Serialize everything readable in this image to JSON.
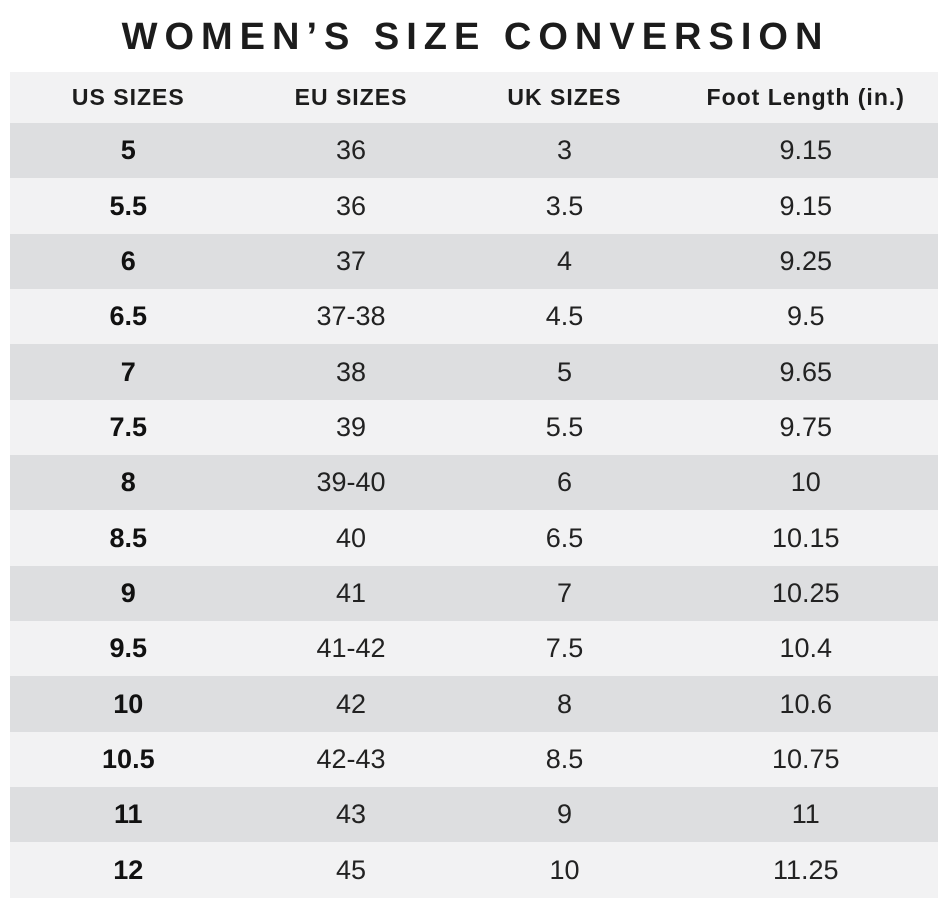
{
  "title": "WOMEN’S SIZE CONVERSION",
  "table": {
    "columns": [
      "US SIZES",
      "EU SIZES",
      "UK SIZES",
      "Foot Length (in.)"
    ],
    "rows": [
      [
        "5",
        "36",
        "3",
        "9.15"
      ],
      [
        "5.5",
        "36",
        "3.5",
        "9.15"
      ],
      [
        "6",
        "37",
        "4",
        "9.25"
      ],
      [
        "6.5",
        "37-38",
        "4.5",
        "9.5"
      ],
      [
        "7",
        "38",
        "5",
        "9.65"
      ],
      [
        "7.5",
        "39",
        "5.5",
        "9.75"
      ],
      [
        "8",
        "39-40",
        "6",
        "10"
      ],
      [
        "8.5",
        "40",
        "6.5",
        "10.15"
      ],
      [
        "9",
        "41",
        "7",
        "10.25"
      ],
      [
        "9.5",
        "41-42",
        "7.5",
        "10.4"
      ],
      [
        "10",
        "42",
        "8",
        "10.6"
      ],
      [
        "10.5",
        "42-43",
        "8.5",
        "10.75"
      ],
      [
        "11",
        "43",
        "9",
        "11"
      ],
      [
        "12",
        "45",
        "10",
        "11.25"
      ]
    ]
  },
  "colors": {
    "row_dark": "#dddee0",
    "row_light": "#f2f2f3",
    "text": "#1c1c1c",
    "background": "#ffffff"
  }
}
